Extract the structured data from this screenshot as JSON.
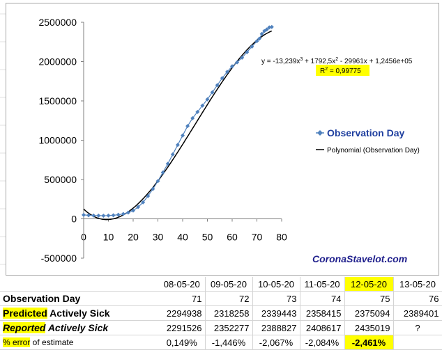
{
  "chart_data": {
    "type": "scatter",
    "ylim": [
      -500000,
      2500000
    ],
    "xlim": [
      0,
      80
    ],
    "y_ticks": [
      "2500000",
      "2000000",
      "1500000",
      "1000000",
      "500000",
      "0",
      "-500000"
    ],
    "x_ticks": [
      "0",
      "10",
      "20",
      "30",
      "40",
      "50",
      "60",
      "70",
      "80"
    ],
    "legend": {
      "series": "Observation Day",
      "trend": "Polynomial (Observation Day)"
    },
    "equation": {
      "text": "y = -13,239x3 + 1792,5x2 - 29961x + 1,2456e+05",
      "r2": "R2 = 0,99775"
    },
    "watermark": "CoronaStavelot.com",
    "trend_coefficients": [
      -13.239,
      1792.5,
      -29961,
      124560
    ],
    "series": [
      {
        "name": "Observation Day",
        "color": "#4f81bd",
        "x": [
          0,
          2,
          4,
          6,
          8,
          10,
          12,
          14,
          16,
          18,
          20,
          22,
          24,
          26,
          28,
          30,
          32,
          34,
          36,
          38,
          40,
          42,
          44,
          46,
          48,
          50,
          52,
          54,
          56,
          58,
          60,
          62,
          64,
          66,
          68,
          70,
          71,
          72,
          73,
          74,
          75,
          76
        ],
        "y": [
          50000,
          45000,
          42000,
          41000,
          40000,
          42000,
          45000,
          52000,
          62000,
          80000,
          105000,
          150000,
          210000,
          290000,
          380000,
          480000,
          590000,
          700000,
          820000,
          940000,
          1060000,
          1180000,
          1280000,
          1360000,
          1440000,
          1520000,
          1610000,
          1700000,
          1790000,
          1870000,
          1940000,
          1990000,
          2050000,
          2120000,
          2190000,
          2260000,
          2291526,
          2352277,
          2388827,
          2408617,
          2435019,
          2440000
        ]
      }
    ]
  },
  "table": {
    "dates": [
      "08-05-20",
      "09-05-20",
      "10-05-20",
      "11-05-20",
      "12-05-20",
      "13-05-20"
    ],
    "rows": {
      "observation_day": {
        "label": "Observation Day",
        "values": [
          "71",
          "72",
          "73",
          "74",
          "75",
          "76"
        ]
      },
      "predicted": {
        "label_hl": "Predicted",
        "label_rest": " Actively Sick",
        "values": [
          "2294938",
          "2318258",
          "2339443",
          "2358415",
          "2375094",
          "2389401"
        ]
      },
      "reported": {
        "label_hl": "Reported",
        "label_rest": " Actively Sick",
        "values": [
          "2291526",
          "2352277",
          "2388827",
          "2408617",
          "2435019",
          "?"
        ]
      },
      "error": {
        "label_hl": "% error",
        "label_rest": " of estimate",
        "values": [
          "0,149%",
          "-1,446%",
          "-2,067%",
          "-2,084%",
          "-2,461%",
          ""
        ]
      }
    }
  },
  "colors": {
    "highlight": "#ffff00",
    "series": "#4f81bd",
    "watermark": "#1f1f8c"
  }
}
